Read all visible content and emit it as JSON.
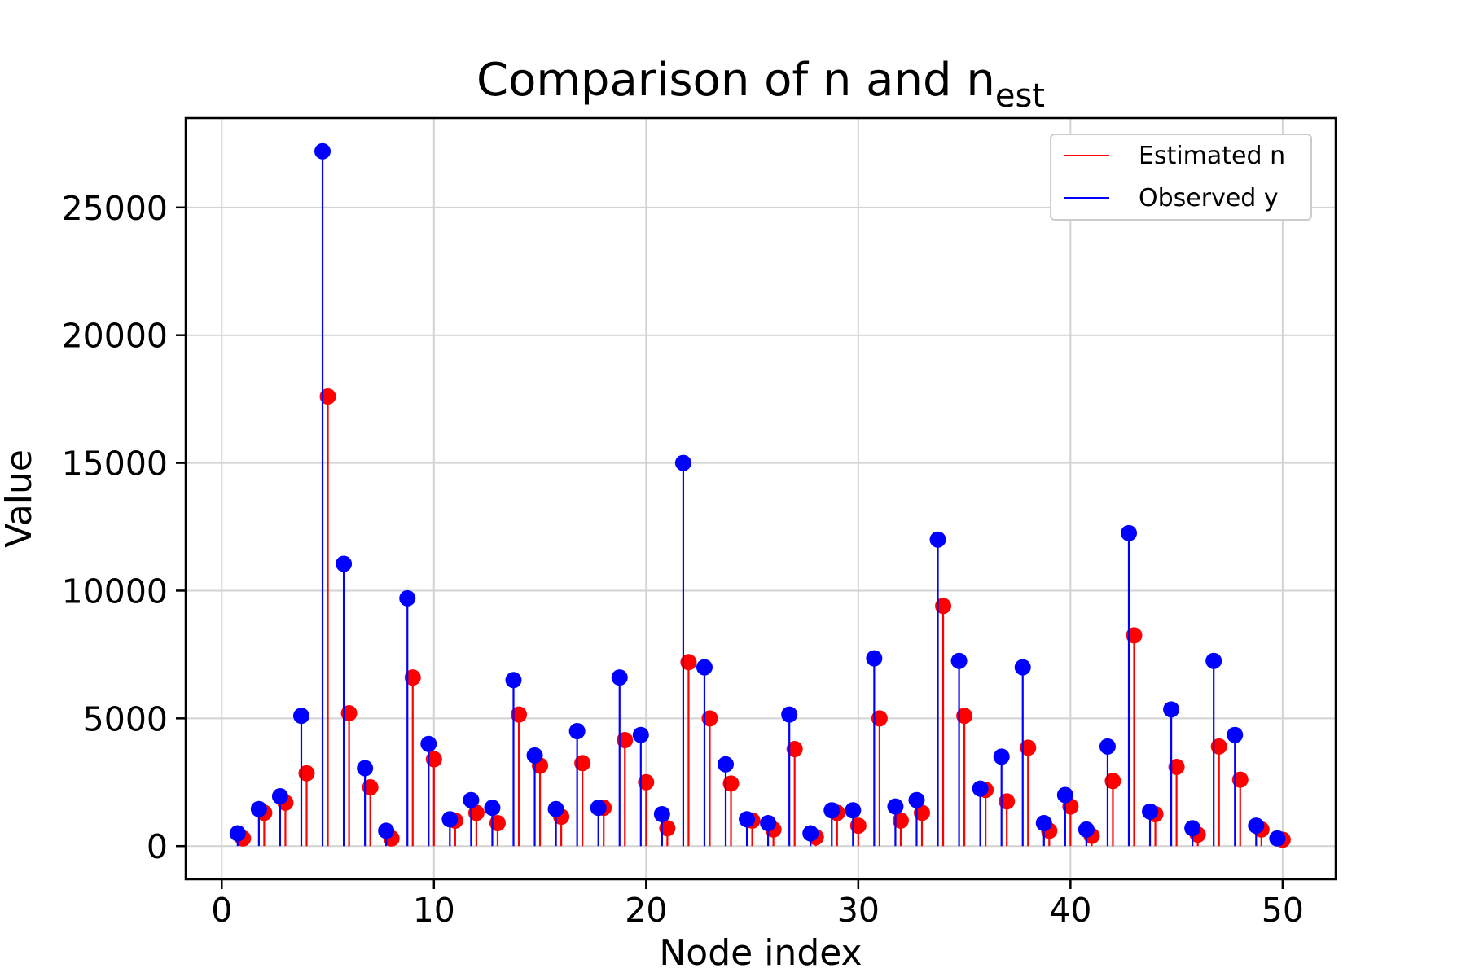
{
  "chart_data": {
    "type": "stem",
    "title": "Comparison of n and n",
    "title_subscript": "est",
    "xlabel": "Node index",
    "ylabel": "Value",
    "xlim": [
      -1.7,
      52.5
    ],
    "ylim": [
      -1300,
      28500
    ],
    "xticks": [
      0,
      10,
      20,
      30,
      40,
      50
    ],
    "yticks": [
      0,
      5000,
      10000,
      15000,
      20000,
      25000
    ],
    "grid": true,
    "legend_position": "upper right",
    "series": [
      {
        "name": "Estimated n",
        "color": "#ff0000",
        "x": [
          1,
          2,
          3,
          4,
          5,
          6,
          7,
          8,
          9,
          10,
          11,
          12,
          13,
          14,
          15,
          16,
          17,
          18,
          19,
          20,
          21,
          22,
          23,
          24,
          25,
          26,
          27,
          28,
          29,
          30,
          31,
          32,
          33,
          34,
          35,
          36,
          37,
          38,
          39,
          40,
          41,
          42,
          43,
          44,
          45,
          46,
          47,
          48,
          49,
          50
        ],
        "values": [
          300,
          1300,
          1700,
          2850,
          17600,
          5200,
          2300,
          300,
          6600,
          3400,
          1000,
          1300,
          900,
          5150,
          3150,
          1150,
          3250,
          1500,
          4150,
          2500,
          700,
          7200,
          5000,
          2450,
          1000,
          650,
          3800,
          350,
          1300,
          800,
          5000,
          1000,
          1300,
          9400,
          5100,
          2200,
          1750,
          3850,
          600,
          1550,
          400,
          2550,
          8250,
          1250,
          3100,
          450,
          3900,
          2600,
          650,
          250
        ]
      },
      {
        "name": "Observed y",
        "color": "#0000ff",
        "x": [
          0.75,
          1.75,
          2.75,
          3.75,
          4.75,
          5.75,
          6.75,
          7.75,
          8.75,
          9.75,
          10.75,
          11.75,
          12.75,
          13.75,
          14.75,
          15.75,
          16.75,
          17.75,
          18.75,
          19.75,
          20.75,
          21.75,
          22.75,
          23.75,
          24.75,
          25.75,
          26.75,
          27.75,
          28.75,
          29.75,
          30.75,
          31.75,
          32.75,
          33.75,
          34.75,
          35.75,
          36.75,
          37.75,
          38.75,
          39.75,
          40.75,
          41.75,
          42.75,
          43.75,
          44.75,
          45.75,
          46.75,
          47.75,
          48.75,
          49.75
        ],
        "values": [
          500,
          1450,
          1950,
          5100,
          27200,
          11050,
          3050,
          600,
          9700,
          4000,
          1050,
          1800,
          1500,
          6500,
          3550,
          1450,
          4500,
          1500,
          6600,
          4350,
          1250,
          15000,
          7000,
          3200,
          1050,
          900,
          5150,
          500,
          1400,
          1400,
          7350,
          1550,
          1800,
          12000,
          7250,
          2250,
          3500,
          7000,
          900,
          2000,
          650,
          3900,
          12250,
          1350,
          5350,
          700,
          7250,
          4350,
          800,
          300
        ]
      }
    ]
  }
}
